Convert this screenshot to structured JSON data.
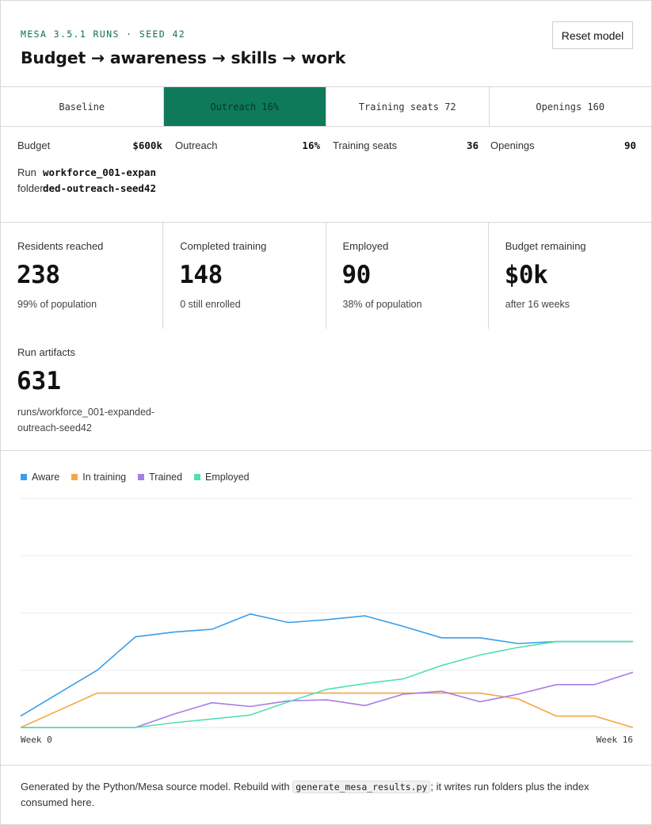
{
  "header": {
    "eyebrow": "MESA 3.5.1 RUNS · SEED 42",
    "title": "Budget → awareness → skills → work",
    "reset_label": "Reset model"
  },
  "tabs": [
    {
      "label": "Baseline",
      "active": false
    },
    {
      "label": "Outreach 16%",
      "active": true
    },
    {
      "label": "Training seats 72",
      "active": false
    },
    {
      "label": "Openings 160",
      "active": false
    }
  ],
  "params": {
    "budget": {
      "label": "Budget",
      "value": "$600k"
    },
    "outreach": {
      "label": "Outreach",
      "value": "16%"
    },
    "training_seats": {
      "label": "Training seats",
      "value": "36"
    },
    "openings": {
      "label": "Openings",
      "value": "90"
    },
    "run_folder": {
      "label": "Run folder",
      "value": "workforce_001-expanded-outreach-seed42"
    }
  },
  "stats": [
    {
      "label": "Residents reached",
      "value": "238",
      "sub": "99% of population"
    },
    {
      "label": "Completed training",
      "value": "148",
      "sub": "0 still enrolled"
    },
    {
      "label": "Employed",
      "value": "90",
      "sub": "38% of population"
    },
    {
      "label": "Budget remaining",
      "value": "$0k",
      "sub": "after 16 weeks"
    }
  ],
  "artifacts": {
    "label": "Run artifacts",
    "value": "631",
    "sub": "runs/workforce_001-expanded-outreach-seed42"
  },
  "chart_data": {
    "type": "line",
    "x": [
      0,
      1,
      2,
      3,
      4,
      5,
      6,
      7,
      8,
      9,
      10,
      11,
      12,
      13,
      14,
      15,
      16
    ],
    "x_tick_labels": {
      "first": "Week 0",
      "last": "Week 16"
    },
    "ylim": [
      0,
      240
    ],
    "grid": true,
    "legend_position": "top-left",
    "series": [
      {
        "name": "Aware",
        "color": "#3b9ee8",
        "values": [
          12,
          36,
          60,
          95,
          100,
          103,
          119,
          110,
          113,
          117,
          106,
          94,
          94,
          88,
          90,
          90,
          90
        ]
      },
      {
        "name": "In training",
        "color": "#f5a742",
        "values": [
          0,
          18,
          36,
          36,
          36,
          36,
          36,
          36,
          36,
          36,
          36,
          36,
          36,
          30,
          12,
          12,
          0
        ]
      },
      {
        "name": "Trained",
        "color": "#a77de8",
        "values": [
          0,
          0,
          0,
          0,
          14,
          26,
          22,
          28,
          29,
          23,
          35,
          38,
          27,
          35,
          45,
          45,
          58
        ]
      },
      {
        "name": "Employed",
        "color": "#52e0b0",
        "values": [
          0,
          0,
          0,
          0,
          5,
          9,
          13,
          27,
          40,
          46,
          51,
          65,
          76,
          84,
          90,
          90,
          90
        ]
      }
    ]
  },
  "footer": {
    "before": "Generated by the Python/Mesa source model. Rebuild with ",
    "code": "generate_mesa_results.py",
    "after": "; it writes run folders plus the index consumed here."
  }
}
